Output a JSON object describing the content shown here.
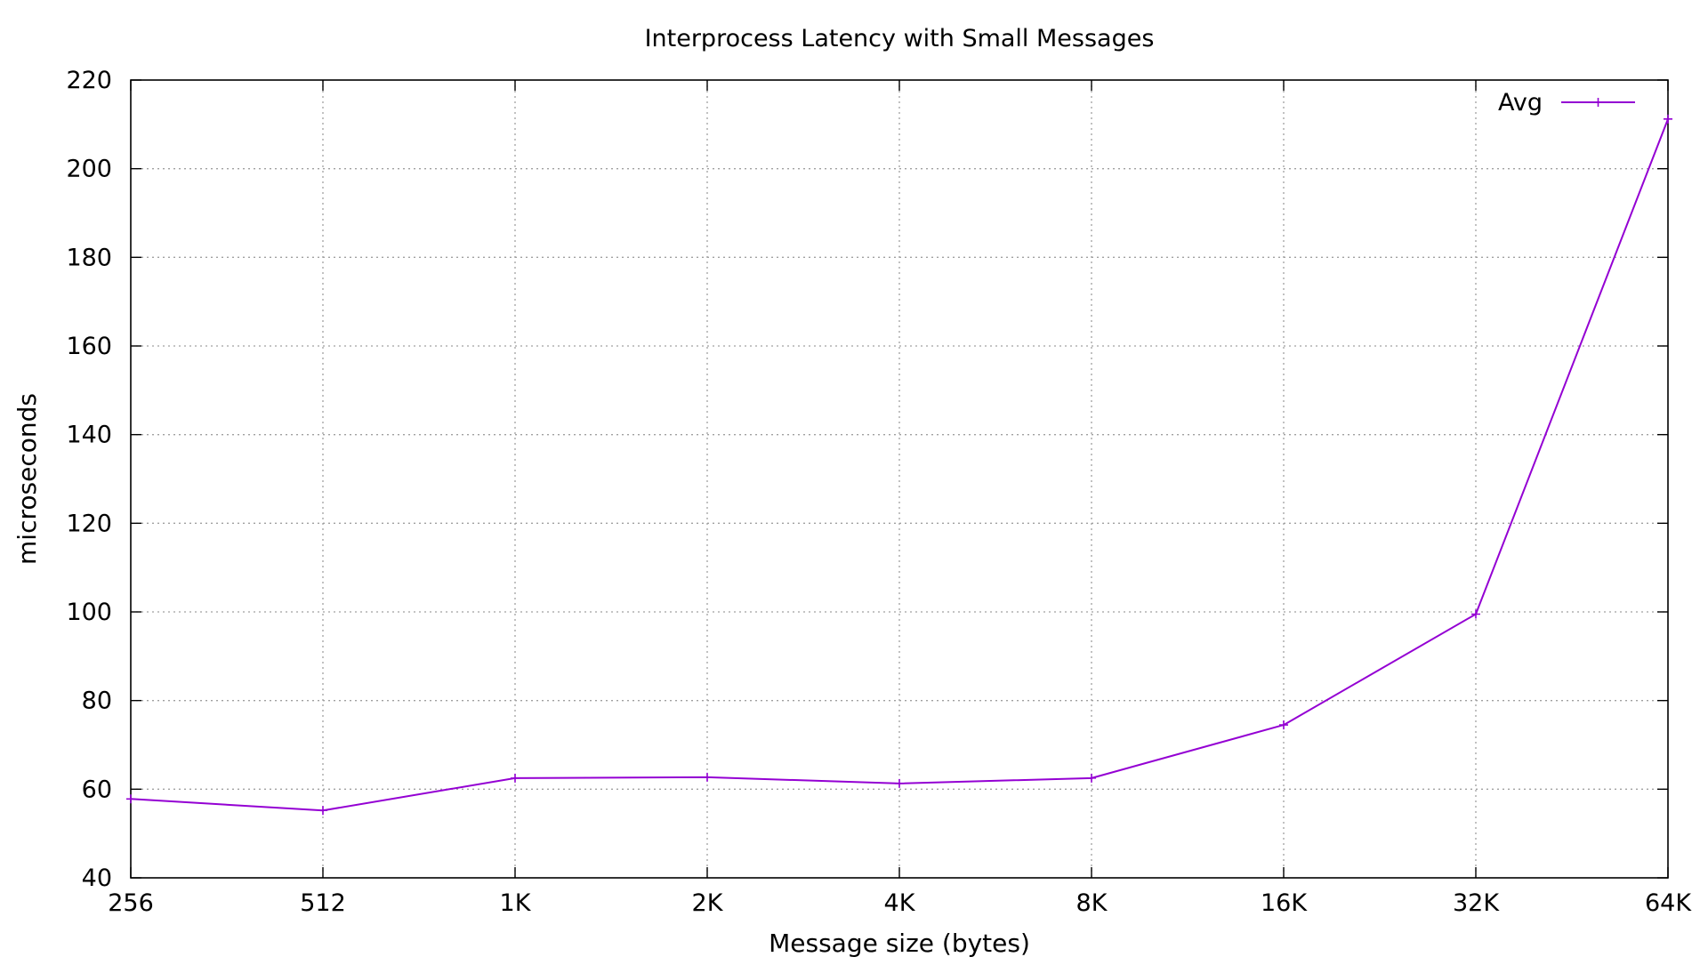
{
  "chart_data": {
    "type": "line",
    "title": "Interprocess Latency with Small Messages",
    "xlabel": "Message size (bytes)",
    "ylabel": "microseconds",
    "categories": [
      "256",
      "512",
      "1K",
      "2K",
      "4K",
      "8K",
      "16K",
      "32K",
      "64K"
    ],
    "ylim": [
      40,
      220
    ],
    "yticks": [
      40,
      60,
      80,
      100,
      120,
      140,
      160,
      180,
      200,
      220
    ],
    "grid": true,
    "legend_position": "top-right",
    "series": [
      {
        "name": "Avg",
        "color": "#9400d3",
        "marker": "plus",
        "values": [
          57.8,
          55.2,
          62.5,
          62.7,
          61.3,
          62.5,
          74.5,
          99.5,
          211.2
        ]
      }
    ]
  }
}
